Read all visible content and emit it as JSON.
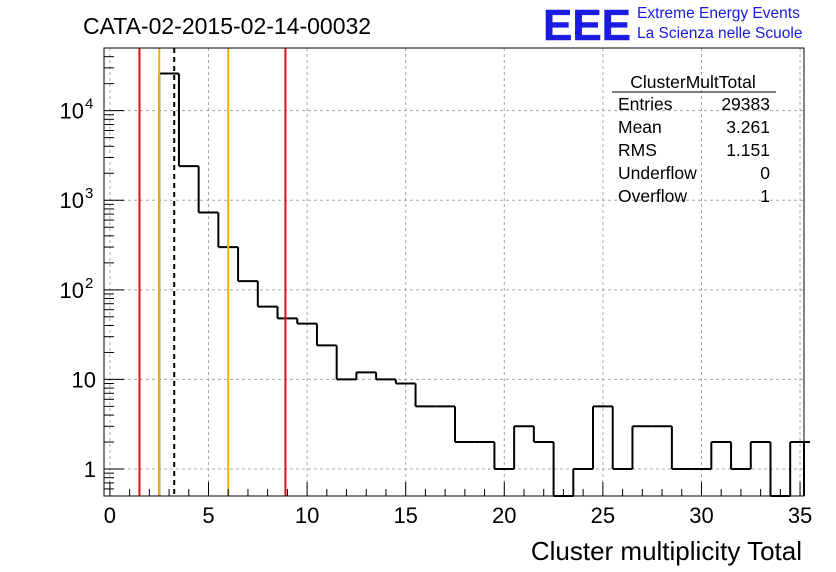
{
  "chart_data": {
    "type": "histogram",
    "title": "CATA-02-2015-02-14-00032",
    "xlabel": "Cluster multiplicity Total",
    "ylabel": "",
    "xlim": [
      -0.3,
      35.2
    ],
    "ylim": [
      0.5,
      50000
    ],
    "yscale": "log",
    "grid": true,
    "x_ticks": [
      "0",
      "5",
      "10",
      "15",
      "20",
      "25",
      "30",
      "35"
    ],
    "y_ticks": [
      {
        "value": 1,
        "label": "1"
      },
      {
        "value": 10,
        "label": "10"
      },
      {
        "value": 100,
        "label": "10",
        "exp": "2"
      },
      {
        "value": 1000,
        "label": "10",
        "exp": "3"
      },
      {
        "value": 10000,
        "label": "10",
        "exp": "4"
      }
    ],
    "bin_width": 1,
    "bins": [
      {
        "x0": 2.5,
        "x1": 3.5,
        "count": 26000
      },
      {
        "x0": 3.5,
        "x1": 4.5,
        "count": 2400
      },
      {
        "x0": 4.5,
        "x1": 5.5,
        "count": 730
      },
      {
        "x0": 5.5,
        "x1": 6.5,
        "count": 300
      },
      {
        "x0": 6.5,
        "x1": 7.5,
        "count": 125
      },
      {
        "x0": 7.5,
        "x1": 8.5,
        "count": 65
      },
      {
        "x0": 8.5,
        "x1": 9.5,
        "count": 48
      },
      {
        "x0": 9.5,
        "x1": 10.5,
        "count": 42
      },
      {
        "x0": 10.5,
        "x1": 11.5,
        "count": 24
      },
      {
        "x0": 11.5,
        "x1": 12.5,
        "count": 10
      },
      {
        "x0": 12.5,
        "x1": 13.5,
        "count": 12
      },
      {
        "x0": 13.5,
        "x1": 14.5,
        "count": 10
      },
      {
        "x0": 14.5,
        "x1": 15.5,
        "count": 9
      },
      {
        "x0": 15.5,
        "x1": 16.5,
        "count": 5
      },
      {
        "x0": 16.5,
        "x1": 17.5,
        "count": 5
      },
      {
        "x0": 17.5,
        "x1": 18.5,
        "count": 2
      },
      {
        "x0": 18.5,
        "x1": 19.5,
        "count": 2
      },
      {
        "x0": 19.5,
        "x1": 20.5,
        "count": 1
      },
      {
        "x0": 20.5,
        "x1": 21.5,
        "count": 3
      },
      {
        "x0": 21.5,
        "x1": 22.5,
        "count": 2
      },
      {
        "x0": 22.5,
        "x1": 23.5,
        "count": 0
      },
      {
        "x0": 23.5,
        "x1": 24.5,
        "count": 1
      },
      {
        "x0": 24.5,
        "x1": 25.5,
        "count": 5
      },
      {
        "x0": 25.5,
        "x1": 26.5,
        "count": 1
      },
      {
        "x0": 26.5,
        "x1": 27.5,
        "count": 3
      },
      {
        "x0": 27.5,
        "x1": 28.5,
        "count": 3
      },
      {
        "x0": 28.5,
        "x1": 29.5,
        "count": 1
      },
      {
        "x0": 29.5,
        "x1": 30.5,
        "count": 1
      },
      {
        "x0": 30.5,
        "x1": 31.5,
        "count": 2
      },
      {
        "x0": 31.5,
        "x1": 32.5,
        "count": 1
      },
      {
        "x0": 32.5,
        "x1": 33.5,
        "count": 2
      },
      {
        "x0": 33.5,
        "x1": 34.5,
        "count": 0
      },
      {
        "x0": 34.5,
        "x1": 35.5,
        "count": 2
      }
    ],
    "vertical_lines": [
      {
        "x": 1.5,
        "color": "#dd1111",
        "style": "solid"
      },
      {
        "x": 2.5,
        "color": "#f0b400",
        "style": "solid"
      },
      {
        "x": 3.261,
        "color": "#000000",
        "style": "dashed"
      },
      {
        "x": 6.0,
        "color": "#f0b400",
        "style": "solid"
      },
      {
        "x": 8.9,
        "color": "#dd1111",
        "style": "solid"
      }
    ],
    "stats": {
      "name": "ClusterMultTotal",
      "rows": [
        {
          "label": "Entries",
          "value": "29383"
        },
        {
          "label": "Mean",
          "value": "3.261"
        },
        {
          "label": "RMS",
          "value": "1.151"
        },
        {
          "label": "Underflow",
          "value": "0"
        },
        {
          "label": "Overflow",
          "value": "1"
        }
      ]
    }
  },
  "logo": {
    "mark": "EEE",
    "line1": "Extreme Energy Events",
    "line2": "La Scienza nelle Scuole"
  }
}
